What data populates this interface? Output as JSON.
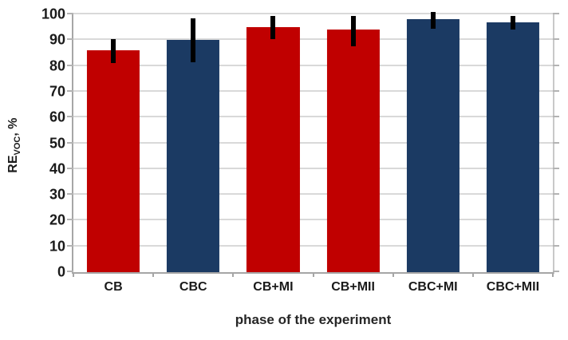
{
  "chart_data": {
    "type": "bar",
    "title": "",
    "xlabel": "phase of the experiment",
    "ylabel_main": "RE",
    "ylabel_sub": "VOC",
    "ylabel_suffix": ", %",
    "categories": [
      "CB",
      "CBC",
      "CB+MI",
      "CB+MII",
      "CBC+MI",
      "CBC+MII"
    ],
    "values": [
      86,
      90,
      95,
      94,
      98,
      97
    ],
    "error_low": [
      81,
      81.5,
      90.5,
      87.5,
      94.5,
      94
    ],
    "error_high": [
      90.5,
      98.5,
      99.5,
      99.5,
      101,
      99.5
    ],
    "bar_colors": [
      "#c00000",
      "#1b3a63",
      "#c00000",
      "#c00000",
      "#1b3a63",
      "#1b3a63"
    ],
    "ylim": [
      0,
      100
    ],
    "yticks": [
      0,
      10,
      20,
      30,
      40,
      50,
      60,
      70,
      80,
      90,
      100
    ],
    "grid": true,
    "legend": "none",
    "colors": {
      "red_bar": "#c00000",
      "blue_bar": "#1b3a63",
      "error_bar": "#000000",
      "gridline": "#d9d9d9",
      "axis_line": "#a6a6a6",
      "text": "#1a1a1a",
      "background": "#ffffff"
    }
  }
}
